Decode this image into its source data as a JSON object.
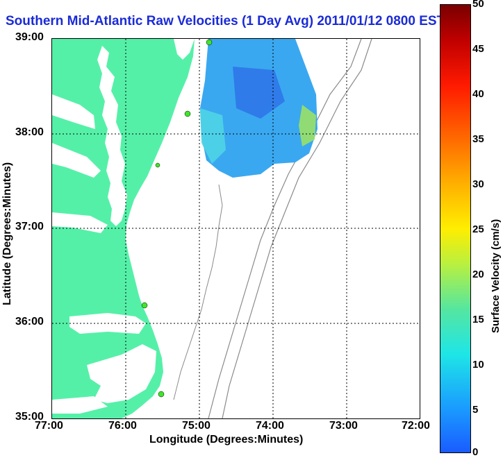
{
  "title": "Southern Mid-Atlantic Raw Velocities (1 Day Avg) 2011/01/12 0800 EST",
  "x_axis": {
    "label": "Longitude (Degrees:Minutes)",
    "ticks": [
      "77:00",
      "76:00",
      "75:00",
      "74:00",
      "73:00",
      "72:00"
    ]
  },
  "y_axis": {
    "label": "Latitude (Degrees:Minutes)",
    "ticks": [
      "39:00",
      "38:00",
      "37:00",
      "36:00",
      "35:00"
    ]
  },
  "colorbar": {
    "label": "Surface Velocity (cm/s)",
    "ticks": [
      "50",
      "45",
      "40",
      "35",
      "30",
      "25",
      "20",
      "15",
      "10",
      "5",
      "0"
    ]
  },
  "colors": {
    "land": "#55f0a8",
    "water": "#ffffff",
    "isobath": "#8a8a8a",
    "station": "#3fe62a",
    "title": "#1a2bd6",
    "grid": "#000000"
  }
}
